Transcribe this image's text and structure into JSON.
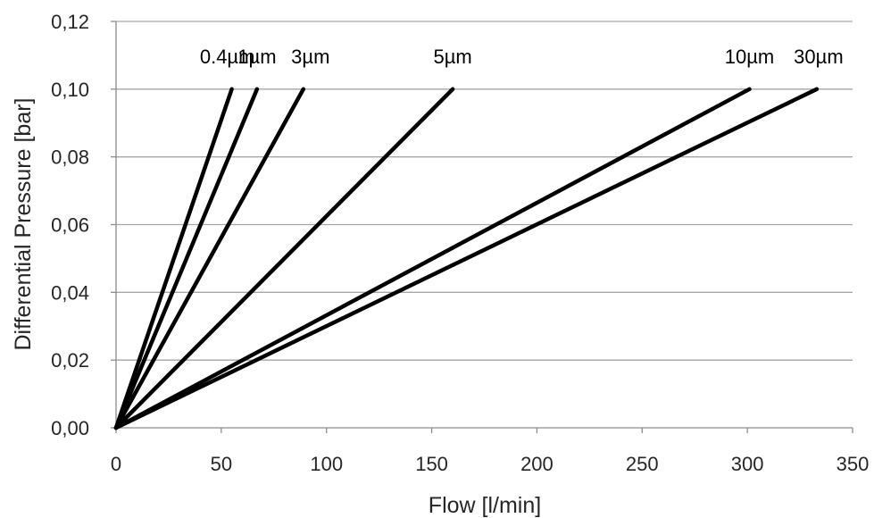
{
  "chart_data": {
    "type": "line",
    "title": "",
    "xlabel": "Flow [l/min]",
    "ylabel": "Differential Pressure [bar]",
    "xlim": [
      0,
      350
    ],
    "ylim": [
      0,
      0.12
    ],
    "xticks": [
      0,
      50,
      100,
      150,
      200,
      250,
      300,
      350
    ],
    "yticks": [
      0,
      0.02,
      0.04,
      0.06,
      0.08,
      0.1,
      0.12
    ],
    "xtick_labels": [
      "0",
      "50",
      "100",
      "150",
      "200",
      "250",
      "300",
      "350"
    ],
    "ytick_labels": [
      "0,00",
      "0,02",
      "0,04",
      "0,06",
      "0,08",
      "0,10",
      "0,12"
    ],
    "grid": "horizontal",
    "line_color": "#000000",
    "grid_color": "#a6a6a6",
    "series": [
      {
        "name": "0.4µm",
        "x": [
          0,
          55
        ],
        "y": [
          0,
          0.1
        ]
      },
      {
        "name": "1µm",
        "x": [
          0,
          67
        ],
        "y": [
          0,
          0.1
        ]
      },
      {
        "name": "3µm",
        "x": [
          0,
          89
        ],
        "y": [
          0,
          0.1
        ]
      },
      {
        "name": "5µm",
        "x": [
          0,
          160
        ],
        "y": [
          0,
          0.1
        ]
      },
      {
        "name": "10µm",
        "x": [
          0,
          301
        ],
        "y": [
          0,
          0.1
        ]
      },
      {
        "name": "30µm",
        "x": [
          0,
          333
        ],
        "y": [
          0,
          0.1
        ]
      }
    ]
  }
}
